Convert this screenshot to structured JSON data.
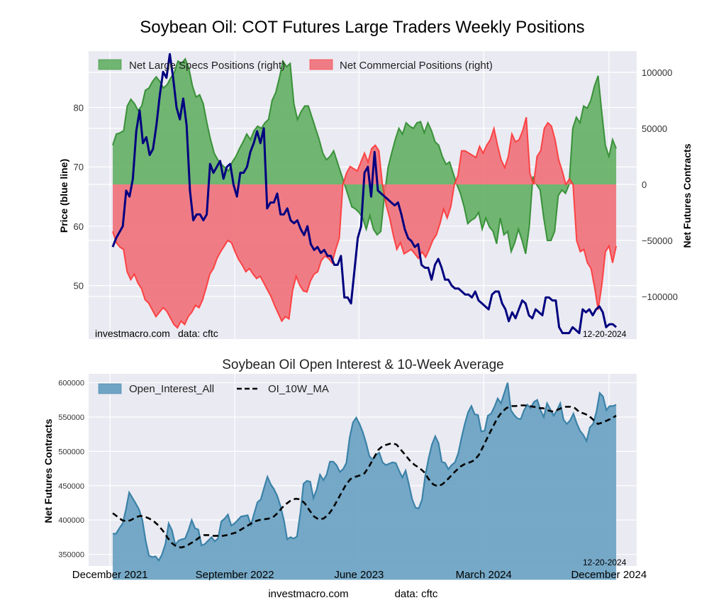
{
  "figure": {
    "title": "Soybean Oil: COT Futures Large Traders Weekly Positions",
    "footer_site": "investmacro.com",
    "footer_source": "data: cftc"
  },
  "chart_data": [
    {
      "type": "area",
      "title": "Soybean Oil: COT Futures Large Traders Weekly Positions",
      "ylabel_left": "Price (blue line)",
      "ylabel_right": "Net Futures Contracts",
      "ylim_left": [
        41,
        89.5
      ],
      "ylim_right": [
        -138000,
        119000
      ],
      "yticks_left": [
        50,
        60,
        70,
        80
      ],
      "yticks_right": [
        -100000,
        -50000,
        0,
        50000,
        100000
      ],
      "ytick_labels_right": [
        "−100000",
        "−50000",
        "0",
        "50000",
        "100000"
      ],
      "grid": true,
      "legend_position": "top-left",
      "watermark": "investmacro.com",
      "watermark_source": "data: cftc",
      "date_stamp": "12-20-2024",
      "x_start": "2021-12-07",
      "x_end": "2024-12-17",
      "series": [
        {
          "name": "Net Large Specs Positions (right)",
          "color": "#2e8b2e",
          "fill": "#5aab5a",
          "values": [
            35000,
            45000,
            46000,
            48000,
            70000,
            76000,
            72000,
            66000,
            70000,
            84000,
            86000,
            92000,
            96000,
            92000,
            86000,
            89000,
            95000,
            100000,
            110000,
            108000,
            112000,
            104000,
            88000,
            78000,
            80000,
            72000,
            55000,
            40000,
            28000,
            22000,
            18000,
            15000,
            12000,
            20000,
            25000,
            32000,
            38000,
            45000,
            40000,
            48000,
            52000,
            50000,
            55000,
            58000,
            75000,
            82000,
            95000,
            110000,
            105000,
            108000,
            72000,
            58000,
            65000,
            70000,
            70000,
            60000,
            50000,
            40000,
            28000,
            22000,
            25000,
            30000,
            20000,
            10000,
            0,
            -10000,
            -20000,
            -22000,
            -25000,
            -30000,
            -40000,
            -28000,
            -40000,
            -45000,
            -42000,
            -10000,
            15000,
            28000,
            40000,
            50000,
            45000,
            55000,
            52000,
            50000,
            55000,
            56000,
            46000,
            55000,
            48000,
            38000,
            35000,
            25000,
            18000,
            20000,
            10000,
            0,
            -8000,
            -20000,
            -35000,
            -32000,
            -30000,
            -25000,
            -40000,
            -30000,
            -38000,
            -42000,
            -53000,
            -30000,
            -45000,
            -42000,
            -60000,
            -52000,
            -40000,
            -50000,
            -62000,
            -38000,
            7000,
            0,
            -5000,
            -30000,
            -50000,
            -50000,
            -42000,
            -10000,
            -5000,
            -8000,
            0,
            50000,
            60000,
            55000,
            70000,
            68000,
            75000,
            88000,
            97000,
            65000,
            35000,
            25000,
            40000,
            32000
          ]
        },
        {
          "name": "Net Commercial Positions (right)",
          "color": "#ff3030",
          "fill": "#f07078",
          "values": [
            -42000,
            -52000,
            -56000,
            -58000,
            -78000,
            -85000,
            -80000,
            -88000,
            -93000,
            -103000,
            -106000,
            -112000,
            -118000,
            -114000,
            -110000,
            -113000,
            -119000,
            -125000,
            -128000,
            -122000,
            -125000,
            -118000,
            -114000,
            -108000,
            -110000,
            -103000,
            -92000,
            -80000,
            -75000,
            -66000,
            -60000,
            -55000,
            -50000,
            -52000,
            -60000,
            -67000,
            -72000,
            -78000,
            -75000,
            -80000,
            -84000,
            -82000,
            -88000,
            -94000,
            -100000,
            -108000,
            -115000,
            -122000,
            -118000,
            -120000,
            -95000,
            -82000,
            -90000,
            -95000,
            -96000,
            -86000,
            -80000,
            -78000,
            -68000,
            -64000,
            -66000,
            -70000,
            -58000,
            -48000,
            0,
            10000,
            16000,
            14000,
            12000,
            20000,
            28000,
            20000,
            32000,
            35000,
            30000,
            0,
            -18000,
            -30000,
            -45000,
            -58000,
            -52000,
            -62000,
            -60000,
            -58000,
            -62000,
            -66000,
            -60000,
            -65000,
            -58000,
            -50000,
            -45000,
            -35000,
            -22000,
            -30000,
            -20000,
            0,
            8000,
            30000,
            30000,
            28000,
            26000,
            24000,
            34000,
            28000,
            35000,
            40000,
            50000,
            35000,
            22000,
            15000,
            25000,
            45000,
            38000,
            40000,
            48000,
            60000,
            10000,
            0,
            25000,
            30000,
            50000,
            55000,
            52000,
            40000,
            22000,
            12000,
            0,
            5000,
            0,
            -50000,
            -60000,
            -58000,
            -70000,
            -75000,
            -92000,
            -112000,
            -90000,
            -60000,
            -55000,
            -70000,
            -55000
          ]
        },
        {
          "name": "Price (blue line)",
          "color": "#000080",
          "values": [
            56.5,
            58.0,
            59.0,
            60.0,
            66.0,
            65.0,
            68.0,
            76.0,
            79.5,
            74.0,
            75.0,
            72.0,
            73.0,
            77.0,
            82.0,
            86.0,
            85.0,
            89.0,
            85.0,
            80.0,
            78.0,
            81.5,
            77.0,
            66.0,
            61.0,
            62.0,
            62.0,
            61.0,
            62.0,
            70.5,
            69.0,
            70.0,
            71.0,
            68.0,
            70.0,
            70.5,
            67.0,
            65.0,
            69.0,
            69.0,
            70.0,
            72.5,
            74.0,
            76.0,
            74.0,
            76.5,
            63.0,
            64.0,
            64.0,
            65.5,
            62.0,
            62.0,
            63.0,
            61.0,
            60.5,
            61.0,
            59.5,
            58.5,
            60.0,
            57.0,
            56.0,
            56.5,
            55.5,
            56.0,
            55.0,
            55.0,
            53.5,
            53.5,
            55.0,
            48.0,
            48.0,
            47.0,
            52.5,
            58.0,
            60.0,
            69.0,
            70.0,
            65.0,
            72.5,
            66.0,
            65.5,
            65.0,
            64.5,
            64.0,
            63.5,
            64.0,
            62.0,
            59.5,
            58.0,
            57.5,
            56.5,
            57.0,
            53.5,
            53.0,
            53.0,
            51.0,
            53.5,
            54.5,
            53.0,
            51.0,
            51.0,
            50.0,
            49.5,
            49.5,
            49.0,
            48.5,
            48.5,
            48.0,
            49.0,
            47.5,
            47.0,
            46.5,
            46.0,
            48.5,
            49.0,
            49.0,
            47.0,
            46.0,
            44.0,
            45.5,
            44.5,
            46.0,
            47.5,
            47.0,
            45.0,
            44.5,
            46.0,
            45.5,
            45.0,
            48.0,
            48.0,
            47.5,
            47.5,
            43.0,
            42.0,
            42.0,
            42.0,
            43.0,
            42.5,
            42.0,
            46.0,
            45.5,
            46.0,
            45.0,
            46.0,
            46.5,
            45.5,
            43.0,
            43.5,
            43.5,
            43.0
          ]
        }
      ]
    },
    {
      "type": "area",
      "title": "Soybean Oil Open Interest & 10-Week Average",
      "ylabel": "Net Futures Contracts",
      "ylim": [
        333000,
        613000
      ],
      "yticks": [
        350000,
        400000,
        450000,
        500000,
        550000,
        600000
      ],
      "xtick_labels": [
        "December 2021",
        "September 2022",
        "June 2023",
        "March 2024",
        "December 2024"
      ],
      "xtick_dates": [
        "2021-12-01",
        "2022-09-01",
        "2023-06-01",
        "2024-03-01",
        "2024-12-01"
      ],
      "x_start": "2021-12-07",
      "x_end": "2024-12-17",
      "grid": true,
      "legend_position": "top-left",
      "date_stamp": "12-20-2024",
      "series": [
        {
          "name": "Open_Interest_All",
          "color": "#3b82a8",
          "fill": "#6fa4c4",
          "values": [
            380000,
            380000,
            388000,
            395000,
            415000,
            440000,
            432000,
            424000,
            415000,
            400000,
            370000,
            348000,
            346000,
            347000,
            341000,
            350000,
            365000,
            395000,
            385000,
            364000,
            370000,
            372000,
            373000,
            385000,
            400000,
            388000,
            386000,
            363000,
            365000,
            370000,
            375000,
            369000,
            373000,
            398000,
            402000,
            408000,
            392000,
            395000,
            400000,
            405000,
            406000,
            407000,
            393000,
            410000,
            426000,
            430000,
            447000,
            463000,
            452000,
            445000,
            435000,
            420000,
            400000,
            372000,
            375000,
            373000,
            376000,
            410000,
            453000,
            457000,
            456000,
            432000,
            445000,
            466000,
            458000,
            466000,
            485000,
            485000,
            480000,
            470000,
            474000,
            483000,
            520000,
            542000,
            549000,
            540000,
            528000,
            512000,
            493000,
            488000,
            495000,
            498000,
            484000,
            480000,
            482000,
            484000,
            483000,
            472000,
            462000,
            472000,
            452000,
            430000,
            418000,
            417000,
            430000,
            465000,
            490000,
            510000,
            522000,
            512000,
            485000,
            483000,
            474000,
            480000,
            484000,
            497000,
            520000,
            540000,
            557000,
            566000,
            554000,
            553000,
            529000,
            530000,
            552000,
            555000,
            565000,
            577000,
            570000,
            585000,
            600000,
            560000,
            553000,
            548000,
            547000,
            560000,
            568000,
            563000,
            572000,
            575000,
            560000,
            550000,
            570000,
            561000,
            552000,
            560000,
            570000,
            546000,
            540000,
            545000,
            555000,
            541000,
            530000,
            524000,
            515000,
            535000,
            540000,
            558000,
            585000,
            580000,
            560000,
            566000,
            566000,
            568000
          ]
        },
        {
          "name": "OI_10W_MA",
          "color": "#000000",
          "style": "dashed",
          "values": [
            410000,
            405000,
            400000,
            398000,
            400000,
            404000,
            406000,
            405000,
            402000,
            398000,
            392000,
            384000,
            374000,
            366000,
            361000,
            360000,
            362000,
            366000,
            370000,
            375000,
            378000,
            378000,
            377000,
            377000,
            377000,
            378000,
            380000,
            382000,
            386000,
            390000,
            394000,
            398000,
            400000,
            401000,
            402000,
            404000,
            410000,
            418000,
            424000,
            429000,
            431000,
            430000,
            424000,
            414000,
            405000,
            401000,
            402000,
            407000,
            416000,
            428000,
            440000,
            452000,
            460000,
            463000,
            465000,
            468000,
            478000,
            490000,
            502000,
            508000,
            510000,
            512000,
            510000,
            502000,
            494000,
            486000,
            480000,
            476000,
            470000,
            460000,
            452000,
            449000,
            452000,
            458000,
            465000,
            472000,
            478000,
            482000,
            484000,
            487000,
            495000,
            508000,
            522000,
            535000,
            548000,
            557000,
            563000,
            566000,
            566000,
            567000,
            567000,
            566000,
            565000,
            563000,
            563000,
            560000,
            558000,
            560000,
            563000,
            565000,
            565000,
            563000,
            557000,
            555000,
            552000,
            546000,
            540000,
            542000,
            545000,
            548000,
            552000
          ]
        }
      ]
    }
  ]
}
